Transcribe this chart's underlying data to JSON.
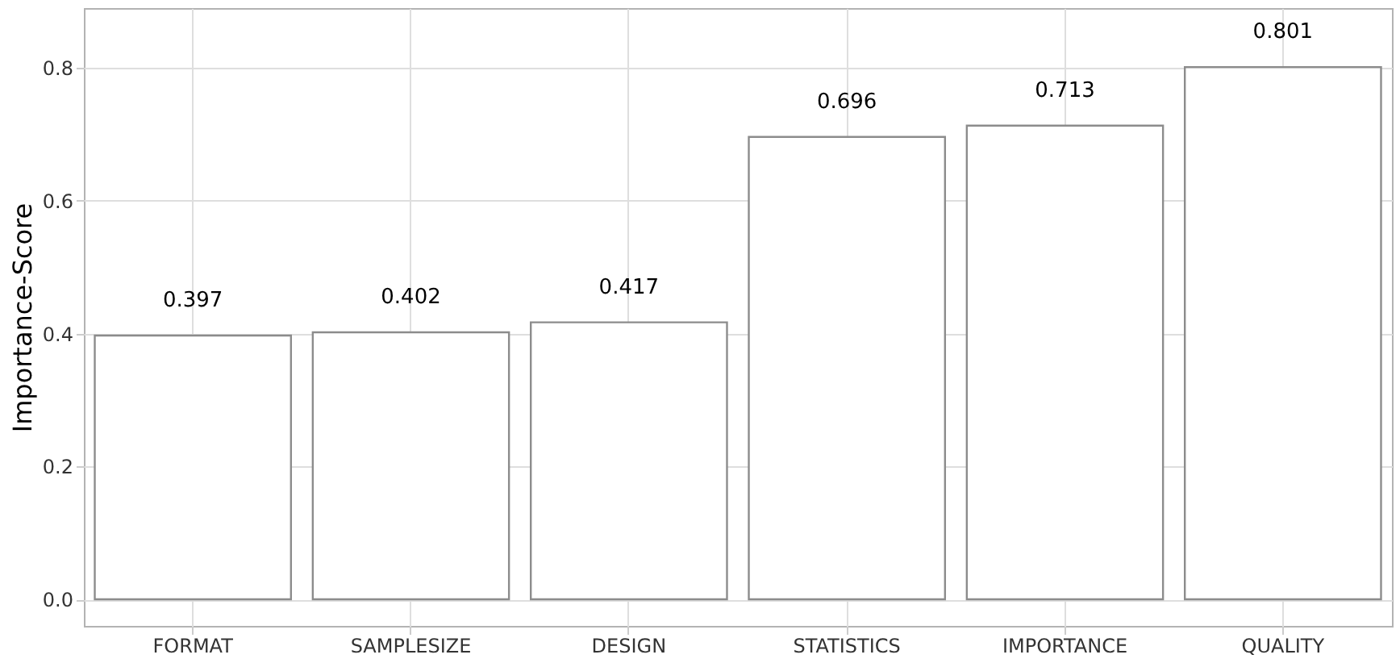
{
  "chart_data": {
    "type": "bar",
    "ylabel": "Importance-Score",
    "categories": [
      "FORMAT",
      "SAMPLESIZE",
      "DESIGN",
      "STATISTICS",
      "IMPORTANCE",
      "QUALITY"
    ],
    "values": [
      0.397,
      0.402,
      0.417,
      0.696,
      0.713,
      0.801
    ],
    "color": "#ffffff",
    "ylim": [
      -0.04,
      0.89
    ],
    "yticks": [
      {
        "value": 0,
        "label": "0.0"
      },
      0.2,
      0.4,
      0.6,
      0.8
    ],
    "grid": true,
    "data_labels": true
  }
}
